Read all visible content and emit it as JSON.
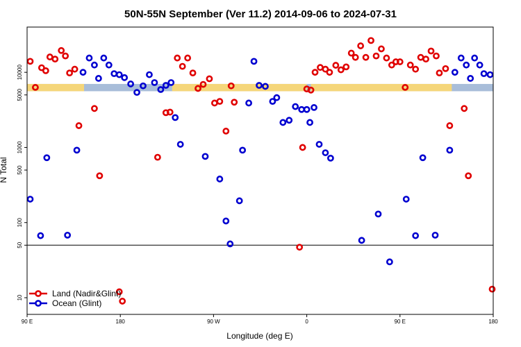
{
  "chart_data": {
    "type": "scatter",
    "title": "50N-55N September (Ver 11.2)   2014-09-06 to 2024-07-31",
    "xlabel": "Longitude (deg E)",
    "ylabel": "N Total",
    "x_unit": "degrees east, plotted from 90 E through 180 to 180 E (wrapping)",
    "xlim": [
      90,
      540
    ],
    "y_scale": "log",
    "ylim": [
      6,
      40000
    ],
    "x_ticks": [
      {
        "value": 90,
        "label": "90 E"
      },
      {
        "value": 180,
        "label": "180"
      },
      {
        "value": 270,
        "label": "90 W"
      },
      {
        "value": 360,
        "label": "0"
      },
      {
        "value": 450,
        "label": "90 E"
      },
      {
        "value": 540,
        "label": "180"
      }
    ],
    "y_ticks": [
      {
        "value": 10,
        "label": "10"
      },
      {
        "value": 50,
        "label": "50"
      },
      {
        "value": 100,
        "label": "100"
      },
      {
        "value": 500,
        "label": "500"
      },
      {
        "value": 1000,
        "label": "1000"
      },
      {
        "value": 5000,
        "label": "5000"
      },
      {
        "value": 10000,
        "label": "10000"
      }
    ],
    "reference_line": 50,
    "land_mask_band": {
      "y_low": 5600,
      "y_high": 7000,
      "land_color": "#f5d67a",
      "ocean_color": "#a8bdd9"
    },
    "land_segments": [
      [
        90,
        145
      ],
      [
        230,
        360
      ],
      [
        364,
        500
      ]
    ],
    "legend_position": "bottom-left",
    "series": [
      {
        "name": "Land (Nadir&Glint)",
        "color": "#e00000",
        "points": [
          [
            93,
            14000
          ],
          [
            98,
            6300
          ],
          [
            104,
            11500
          ],
          [
            108,
            10500
          ],
          [
            112,
            16000
          ],
          [
            117,
            15000
          ],
          [
            123,
            19500
          ],
          [
            127,
            16500
          ],
          [
            131,
            9800
          ],
          [
            136,
            11000
          ],
          [
            140,
            1950
          ],
          [
            155,
            3300
          ],
          [
            160,
            420
          ],
          [
            179,
            12
          ],
          [
            182,
            9
          ],
          [
            216,
            740
          ],
          [
            224,
            2900
          ],
          [
            228,
            2950
          ],
          [
            235,
            15500
          ],
          [
            240,
            12000
          ],
          [
            245,
            15500
          ],
          [
            250,
            9800
          ],
          [
            255,
            6100
          ],
          [
            260,
            6900
          ],
          [
            266,
            8200
          ],
          [
            271,
            3900
          ],
          [
            276,
            4100
          ],
          [
            282,
            1650
          ],
          [
            287,
            6600
          ],
          [
            290,
            4000
          ],
          [
            353,
            47
          ],
          [
            356,
            1000
          ],
          [
            360,
            6000
          ],
          [
            364,
            5800
          ],
          [
            368,
            10000
          ],
          [
            373,
            11600
          ],
          [
            378,
            11000
          ],
          [
            382,
            10000
          ],
          [
            388,
            12400
          ],
          [
            393,
            10800
          ],
          [
            398,
            11800
          ],
          [
            403,
            18000
          ],
          [
            407,
            15800
          ],
          [
            412,
            22500
          ],
          [
            417,
            15800
          ],
          [
            422,
            26500
          ],
          [
            427,
            16500
          ],
          [
            432,
            20500
          ],
          [
            437,
            15500
          ],
          [
            442,
            12500
          ],
          [
            446,
            13800
          ],
          [
            450,
            13800
          ],
          [
            455,
            6300
          ],
          [
            460,
            12500
          ],
          [
            465,
            11000
          ],
          [
            470,
            15800
          ],
          [
            475,
            15000
          ],
          [
            480,
            19200
          ],
          [
            485,
            16500
          ],
          [
            488,
            9800
          ],
          [
            494,
            11200
          ],
          [
            498,
            1950
          ],
          [
            512,
            3300
          ],
          [
            516,
            420
          ],
          [
            539,
            13
          ]
        ]
      },
      {
        "name": "Ocean (Glint)",
        "color": "#0000d0",
        "points": [
          [
            93,
            205
          ],
          [
            103,
            67
          ],
          [
            109,
            730
          ],
          [
            129,
            68
          ],
          [
            138,
            920
          ],
          [
            144,
            10000
          ],
          [
            150,
            15500
          ],
          [
            155,
            12500
          ],
          [
            159,
            8300
          ],
          [
            164,
            15500
          ],
          [
            169,
            12500
          ],
          [
            174,
            9600
          ],
          [
            179,
            9300
          ],
          [
            184,
            8500
          ],
          [
            190,
            7000
          ],
          [
            196,
            5400
          ],
          [
            202,
            6600
          ],
          [
            208,
            9300
          ],
          [
            213,
            7300
          ],
          [
            219,
            5900
          ],
          [
            224,
            6700
          ],
          [
            229,
            7300
          ],
          [
            233,
            2500
          ],
          [
            238,
            1100
          ],
          [
            262,
            760
          ],
          [
            276,
            380
          ],
          [
            282,
            105
          ],
          [
            286,
            52
          ],
          [
            295,
            195
          ],
          [
            298,
            920
          ],
          [
            304,
            3900
          ],
          [
            309,
            14000
          ],
          [
            314,
            6700
          ],
          [
            320,
            6500
          ],
          [
            327,
            4100
          ],
          [
            331,
            4600
          ],
          [
            337,
            2150
          ],
          [
            343,
            2300
          ],
          [
            349,
            3500
          ],
          [
            355,
            3200
          ],
          [
            360,
            3200
          ],
          [
            363,
            2150
          ],
          [
            367,
            3400
          ],
          [
            372,
            1100
          ],
          [
            378,
            850
          ],
          [
            383,
            720
          ],
          [
            413,
            58
          ],
          [
            429,
            130
          ],
          [
            440,
            30
          ],
          [
            456,
            205
          ],
          [
            465,
            67
          ],
          [
            472,
            730
          ],
          [
            484,
            68
          ],
          [
            498,
            920
          ],
          [
            503,
            10000
          ],
          [
            509,
            15500
          ],
          [
            514,
            12500
          ],
          [
            518,
            8300
          ],
          [
            522,
            15500
          ],
          [
            527,
            12500
          ],
          [
            531,
            9600
          ],
          [
            537,
            9300
          ]
        ]
      }
    ]
  }
}
